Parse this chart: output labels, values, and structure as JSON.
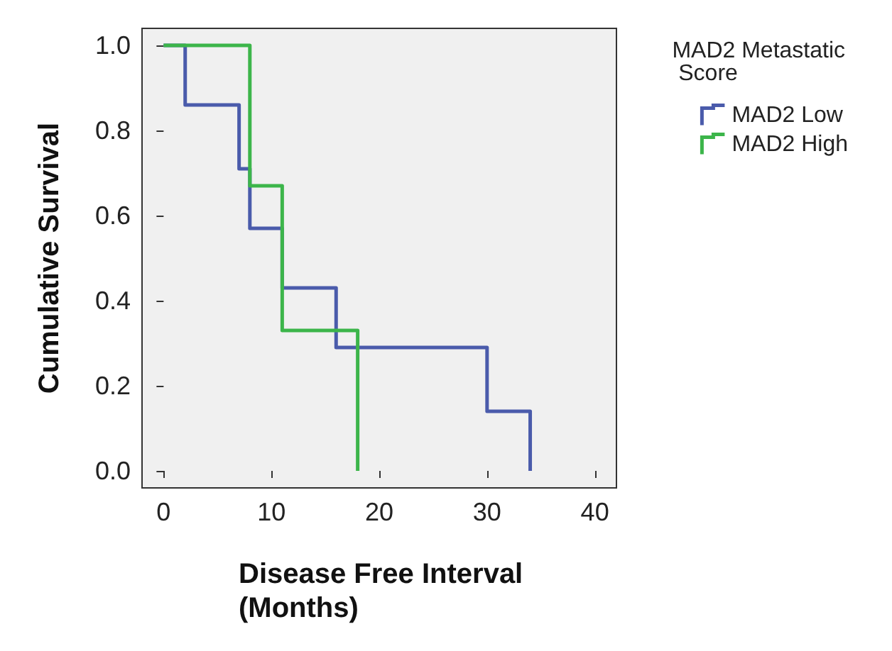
{
  "chart_data": {
    "type": "step",
    "xlabel": "Disease Free Interval (Months)",
    "ylabel": "Cumulative Survival",
    "legend_title": "MAD2 Metastatic Score",
    "legend": "top right",
    "grid": false,
    "xlim": [
      -2,
      42
    ],
    "xticks": [
      0,
      10,
      20,
      30,
      40
    ],
    "ylim": [
      -0.04,
      1.04
    ],
    "yticks": [
      {
        "value": 0,
        "label": "0.0"
      },
      0.2,
      0.4,
      0.6,
      0.8,
      {
        "value": 1,
        "label": "1.0"
      }
    ],
    "series": [
      {
        "name": "MAD2 Low",
        "color": "#4a5bab",
        "x": [
          0,
          2,
          7,
          8,
          11,
          16,
          30,
          34
        ],
        "values": [
          1,
          0.86,
          0.71,
          0.57,
          0.43,
          0.29,
          0.14,
          0
        ]
      },
      {
        "name": "MAD2 High",
        "color": "#3cb54a",
        "x": [
          0,
          8,
          11,
          18
        ],
        "values": [
          1,
          0.67,
          0.33,
          0
        ]
      }
    ]
  }
}
